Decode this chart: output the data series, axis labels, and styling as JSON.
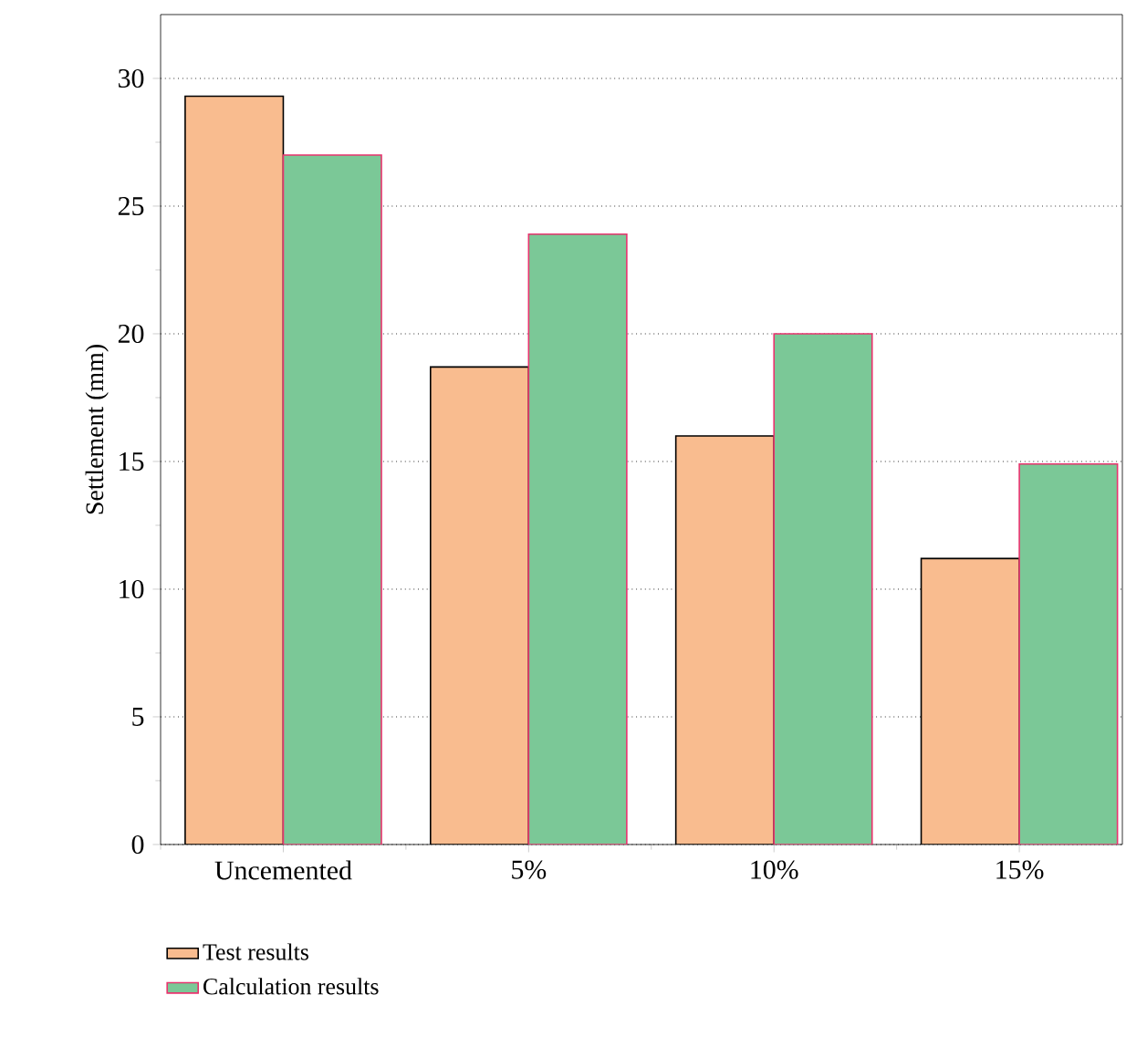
{
  "chart_data": {
    "type": "bar",
    "ylabel": "Settlement (mm)",
    "categories": [
      "Uncemented",
      "5%",
      "10%",
      "15%"
    ],
    "series": [
      {
        "name": "Test results",
        "color": "#f9bc8f",
        "values": [
          29.3,
          18.7,
          16.0,
          11.2
        ]
      },
      {
        "name": "Calculation results",
        "color": "#7bc897",
        "values": [
          27.0,
          23.9,
          20.0,
          14.9
        ]
      }
    ],
    "ylim": [
      0,
      32.5
    ],
    "yticks": [
      0,
      5,
      10,
      15,
      20,
      25,
      30
    ],
    "grid": "y",
    "legend": "bottom left"
  }
}
